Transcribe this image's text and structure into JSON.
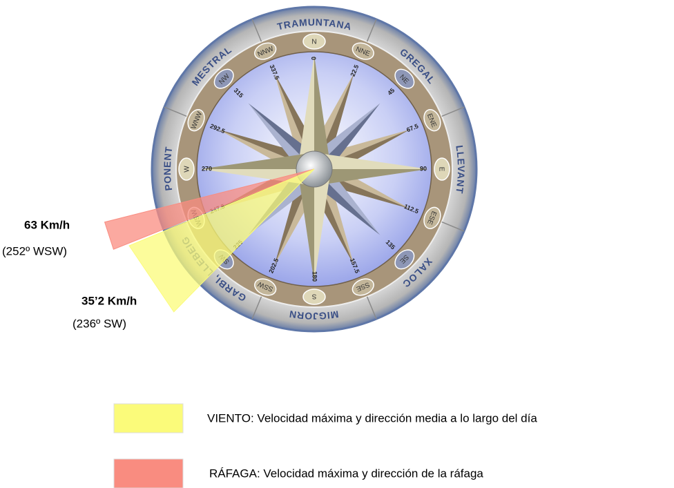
{
  "compass": {
    "winds": [
      {
        "name": "TRAMUNTANA",
        "degrees": 0
      },
      {
        "name": "GREGAL",
        "degrees": 45
      },
      {
        "name": "LLEVANT",
        "degrees": 90
      },
      {
        "name": "XALOC",
        "degrees": 135
      },
      {
        "name": "MIGJORN",
        "degrees": 180
      },
      {
        "name": "GARBI, LLEBEIG",
        "degrees": 225
      },
      {
        "name": "PONENT",
        "degrees": 270
      },
      {
        "name": "MESTRAL",
        "degrees": 315
      }
    ],
    "points": [
      {
        "label": "N",
        "degrees": 0
      },
      {
        "label": "NNE",
        "degrees": 22.5
      },
      {
        "label": "NE",
        "degrees": 45
      },
      {
        "label": "ENE",
        "degrees": 67.5
      },
      {
        "label": "E",
        "degrees": 90
      },
      {
        "label": "ESE",
        "degrees": 112.5
      },
      {
        "label": "SE",
        "degrees": 135
      },
      {
        "label": "SSE",
        "degrees": 157.5
      },
      {
        "label": "S",
        "degrees": 180
      },
      {
        "label": "SSW",
        "degrees": 202.5
      },
      {
        "label": "SW",
        "degrees": 225
      },
      {
        "label": "WSW",
        "degrees": 247.5
      },
      {
        "label": "W",
        "degrees": 270
      },
      {
        "label": "WNW",
        "degrees": 292.5
      },
      {
        "label": "NW",
        "degrees": 315
      },
      {
        "label": "NNW",
        "degrees": 337.5
      }
    ]
  },
  "readings": [
    {
      "speed": "63 Km/h",
      "detail": "(252º WSW)",
      "direction": 252,
      "color": "#f98c80"
    },
    {
      "speed": "35’2 Km/h",
      "detail": "(236º SW)",
      "direction": 236,
      "color": "#fbfb7a"
    }
  ],
  "legend": [
    {
      "color": "#fbfb7a",
      "label": "VIENTO: Velocidad máxima y dirección media a lo largo del día"
    },
    {
      "color": "#f98c80",
      "label": "RÁFAGA: Velocidad máxima y dirección de la ráfaga"
    }
  ]
}
